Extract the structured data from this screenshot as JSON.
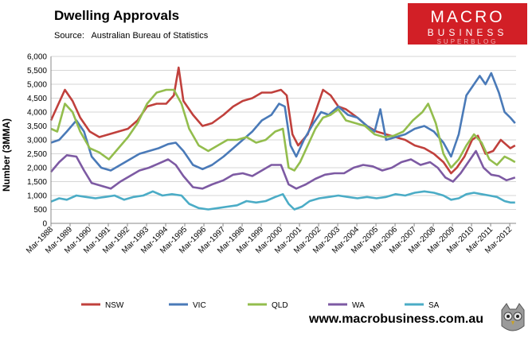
{
  "header": {
    "title": "Dwelling Approvals",
    "source": "Source:   Australian Bureau of Statistics"
  },
  "logo": {
    "main": "MACRO",
    "sub": "BUSINESS",
    "sub2": "SUPERBLOG"
  },
  "footer": {
    "website": "www.macrobusiness.com.au"
  },
  "chart_data": {
    "type": "line",
    "title": "Dwelling Approvals",
    "xlabel": "",
    "ylabel": "Number (3MMA)",
    "ylim": [
      0,
      6000
    ],
    "yticks": [
      "0",
      "500",
      "1,000",
      "1,500",
      "2,000",
      "2,500",
      "3,000",
      "3,500",
      "4,000",
      "4,500",
      "5,000",
      "5,500",
      "6,000"
    ],
    "categories": [
      "Mar-1988",
      "Mar-1989",
      "Mar-1990",
      "Mar-1991",
      "Mar-1992",
      "Mar-1993",
      "Mar-1994",
      "Mar-1995",
      "Mar-1996",
      "Mar-1997",
      "Mar-1998",
      "Mar-1999",
      "Mar-2000",
      "Mar-2001",
      "Mar-2002",
      "Mar-2003",
      "Mar-2004",
      "Mar-2005",
      "Mar-2006",
      "Mar-2007",
      "Mar-2008",
      "Mar-2009",
      "Mar-2010",
      "Mar-2011",
      "Mar-2012"
    ],
    "x_start": 1988.17,
    "x_end": 2012.5,
    "series": [
      {
        "name": "NSW",
        "color": "#c0403c",
        "points": [
          [
            1988.17,
            3700
          ],
          [
            1988.5,
            4200
          ],
          [
            1988.9,
            4800
          ],
          [
            1989.3,
            4400
          ],
          [
            1989.7,
            3800
          ],
          [
            1990.2,
            3300
          ],
          [
            1990.7,
            3100
          ],
          [
            1991.2,
            3200
          ],
          [
            1991.7,
            3300
          ],
          [
            1992.2,
            3400
          ],
          [
            1992.7,
            3700
          ],
          [
            1993.2,
            4200
          ],
          [
            1993.7,
            4300
          ],
          [
            1994.2,
            4300
          ],
          [
            1994.6,
            4600
          ],
          [
            1994.85,
            5600
          ],
          [
            1995.1,
            4400
          ],
          [
            1995.6,
            3900
          ],
          [
            1996.1,
            3500
          ],
          [
            1996.6,
            3600
          ],
          [
            1997.2,
            3900
          ],
          [
            1997.7,
            4200
          ],
          [
            1998.2,
            4400
          ],
          [
            1998.7,
            4500
          ],
          [
            1999.2,
            4700
          ],
          [
            1999.7,
            4700
          ],
          [
            2000.2,
            4800
          ],
          [
            2000.5,
            4600
          ],
          [
            2000.8,
            3200
          ],
          [
            2001.1,
            2800
          ],
          [
            2001.6,
            3200
          ],
          [
            2002.0,
            4000
          ],
          [
            2002.4,
            4800
          ],
          [
            2002.8,
            4600
          ],
          [
            2003.2,
            4200
          ],
          [
            2003.6,
            4100
          ],
          [
            2004.2,
            3800
          ],
          [
            2004.7,
            3500
          ],
          [
            2005.2,
            3300
          ],
          [
            2005.7,
            3200
          ],
          [
            2006.2,
            3100
          ],
          [
            2006.7,
            3000
          ],
          [
            2007.2,
            2800
          ],
          [
            2007.7,
            2700
          ],
          [
            2008.2,
            2500
          ],
          [
            2008.7,
            2200
          ],
          [
            2009.1,
            1800
          ],
          [
            2009.4,
            2000
          ],
          [
            2009.8,
            2400
          ],
          [
            2010.2,
            3000
          ],
          [
            2010.5,
            3150
          ],
          [
            2010.9,
            2500
          ],
          [
            2011.3,
            2600
          ],
          [
            2011.7,
            3000
          ],
          [
            2012.2,
            2700
          ],
          [
            2012.45,
            2800
          ]
        ]
      },
      {
        "name": "VIC",
        "color": "#4a7ab8",
        "points": [
          [
            1988.17,
            2900
          ],
          [
            1988.6,
            3000
          ],
          [
            1989.0,
            3300
          ],
          [
            1989.5,
            3700
          ],
          [
            1989.9,
            3300
          ],
          [
            1990.3,
            2400
          ],
          [
            1990.8,
            2000
          ],
          [
            1991.3,
            1900
          ],
          [
            1991.8,
            2100
          ],
          [
            1992.3,
            2300
          ],
          [
            1992.8,
            2500
          ],
          [
            1993.3,
            2600
          ],
          [
            1993.8,
            2700
          ],
          [
            1994.3,
            2850
          ],
          [
            1994.7,
            2900
          ],
          [
            1995.1,
            2600
          ],
          [
            1995.6,
            2100
          ],
          [
            1996.1,
            1950
          ],
          [
            1996.6,
            2100
          ],
          [
            1997.2,
            2400
          ],
          [
            1997.7,
            2700
          ],
          [
            1998.2,
            3000
          ],
          [
            1998.7,
            3300
          ],
          [
            1999.2,
            3700
          ],
          [
            1999.7,
            3900
          ],
          [
            2000.1,
            4300
          ],
          [
            2000.4,
            4200
          ],
          [
            2000.7,
            2800
          ],
          [
            2001.0,
            2400
          ],
          [
            2001.4,
            3000
          ],
          [
            2001.9,
            3600
          ],
          [
            2002.3,
            4000
          ],
          [
            2002.7,
            3900
          ],
          [
            2003.2,
            4200
          ],
          [
            2003.7,
            3900
          ],
          [
            2004.2,
            3800
          ],
          [
            2004.7,
            3500
          ],
          [
            2005.1,
            3300
          ],
          [
            2005.4,
            4100
          ],
          [
            2005.7,
            3000
          ],
          [
            2006.2,
            3100
          ],
          [
            2006.7,
            3200
          ],
          [
            2007.2,
            3400
          ],
          [
            2007.7,
            3500
          ],
          [
            2008.2,
            3300
          ],
          [
            2008.7,
            2900
          ],
          [
            2009.1,
            2400
          ],
          [
            2009.5,
            3200
          ],
          [
            2009.9,
            4600
          ],
          [
            2010.3,
            5000
          ],
          [
            2010.6,
            5300
          ],
          [
            2010.9,
            5000
          ],
          [
            2011.2,
            5400
          ],
          [
            2011.6,
            4700
          ],
          [
            2011.9,
            4000
          ],
          [
            2012.2,
            3800
          ],
          [
            2012.45,
            3600
          ]
        ]
      },
      {
        "name": "QLD",
        "color": "#93bd4d",
        "points": [
          [
            1988.17,
            3400
          ],
          [
            1988.5,
            3300
          ],
          [
            1988.9,
            4300
          ],
          [
            1989.3,
            4000
          ],
          [
            1989.7,
            3300
          ],
          [
            1990.2,
            2700
          ],
          [
            1990.7,
            2550
          ],
          [
            1991.2,
            2300
          ],
          [
            1991.7,
            2700
          ],
          [
            1992.2,
            3100
          ],
          [
            1992.7,
            3600
          ],
          [
            1993.2,
            4300
          ],
          [
            1993.7,
            4700
          ],
          [
            1994.2,
            4800
          ],
          [
            1994.6,
            4800
          ],
          [
            1995.0,
            4300
          ],
          [
            1995.4,
            3400
          ],
          [
            1995.9,
            2800
          ],
          [
            1996.4,
            2600
          ],
          [
            1996.9,
            2800
          ],
          [
            1997.4,
            3000
          ],
          [
            1997.9,
            3000
          ],
          [
            1998.4,
            3100
          ],
          [
            1998.9,
            2900
          ],
          [
            1999.4,
            3000
          ],
          [
            1999.9,
            3300
          ],
          [
            2000.3,
            3400
          ],
          [
            2000.6,
            2000
          ],
          [
            2000.9,
            1900
          ],
          [
            2001.2,
            2200
          ],
          [
            2001.6,
            2800
          ],
          [
            2002.0,
            3400
          ],
          [
            2002.4,
            3800
          ],
          [
            2002.8,
            3900
          ],
          [
            2003.2,
            4100
          ],
          [
            2003.6,
            3700
          ],
          [
            2004.1,
            3600
          ],
          [
            2004.6,
            3500
          ],
          [
            2005.1,
            3200
          ],
          [
            2005.6,
            3100
          ],
          [
            2006.1,
            3150
          ],
          [
            2006.6,
            3300
          ],
          [
            2007.1,
            3700
          ],
          [
            2007.6,
            4000
          ],
          [
            2007.9,
            4300
          ],
          [
            2008.3,
            3600
          ],
          [
            2008.7,
            2500
          ],
          [
            2009.1,
            2000
          ],
          [
            2009.5,
            2300
          ],
          [
            2009.9,
            2800
          ],
          [
            2010.3,
            3200
          ],
          [
            2010.7,
            2900
          ],
          [
            2011.1,
            2300
          ],
          [
            2011.5,
            2100
          ],
          [
            2011.9,
            2400
          ],
          [
            2012.2,
            2300
          ],
          [
            2012.45,
            2200
          ]
        ]
      },
      {
        "name": "WA",
        "color": "#7d5aa3",
        "points": [
          [
            1988.17,
            1850
          ],
          [
            1988.6,
            2200
          ],
          [
            1989.0,
            2450
          ],
          [
            1989.5,
            2400
          ],
          [
            1989.9,
            1900
          ],
          [
            1990.3,
            1450
          ],
          [
            1990.8,
            1350
          ],
          [
            1991.3,
            1250
          ],
          [
            1991.8,
            1500
          ],
          [
            1992.3,
            1700
          ],
          [
            1992.8,
            1900
          ],
          [
            1993.3,
            2000
          ],
          [
            1993.8,
            2150
          ],
          [
            1994.3,
            2300
          ],
          [
            1994.7,
            2100
          ],
          [
            1995.1,
            1700
          ],
          [
            1995.6,
            1300
          ],
          [
            1996.1,
            1250
          ],
          [
            1996.6,
            1400
          ],
          [
            1997.2,
            1550
          ],
          [
            1997.7,
            1750
          ],
          [
            1998.2,
            1800
          ],
          [
            1998.7,
            1700
          ],
          [
            1999.2,
            1900
          ],
          [
            1999.7,
            2100
          ],
          [
            2000.2,
            2100
          ],
          [
            2000.6,
            1400
          ],
          [
            2001.0,
            1250
          ],
          [
            2001.5,
            1400
          ],
          [
            2002.0,
            1600
          ],
          [
            2002.5,
            1750
          ],
          [
            2003.0,
            1800
          ],
          [
            2003.5,
            1800
          ],
          [
            2004.0,
            2000
          ],
          [
            2004.5,
            2100
          ],
          [
            2005.0,
            2050
          ],
          [
            2005.5,
            1900
          ],
          [
            2006.0,
            2000
          ],
          [
            2006.5,
            2200
          ],
          [
            2007.0,
            2300
          ],
          [
            2007.5,
            2100
          ],
          [
            2008.0,
            2200
          ],
          [
            2008.4,
            2000
          ],
          [
            2008.8,
            1650
          ],
          [
            2009.2,
            1500
          ],
          [
            2009.6,
            1800
          ],
          [
            2010.1,
            2300
          ],
          [
            2010.4,
            2600
          ],
          [
            2010.8,
            2000
          ],
          [
            2011.2,
            1750
          ],
          [
            2011.6,
            1700
          ],
          [
            2012.0,
            1550
          ],
          [
            2012.45,
            1650
          ]
        ]
      },
      {
        "name": "SA",
        "color": "#4bacc6",
        "points": [
          [
            1988.17,
            780
          ],
          [
            1988.6,
            900
          ],
          [
            1989.0,
            850
          ],
          [
            1989.5,
            1000
          ],
          [
            1990.0,
            950
          ],
          [
            1990.5,
            900
          ],
          [
            1991.0,
            950
          ],
          [
            1991.5,
            1000
          ],
          [
            1992.0,
            850
          ],
          [
            1992.5,
            950
          ],
          [
            1993.0,
            1000
          ],
          [
            1993.5,
            1150
          ],
          [
            1994.0,
            1000
          ],
          [
            1994.5,
            1050
          ],
          [
            1995.0,
            1000
          ],
          [
            1995.4,
            700
          ],
          [
            1995.9,
            550
          ],
          [
            1996.4,
            500
          ],
          [
            1996.9,
            550
          ],
          [
            1997.4,
            600
          ],
          [
            1997.9,
            650
          ],
          [
            1998.4,
            800
          ],
          [
            1998.9,
            750
          ],
          [
            1999.4,
            800
          ],
          [
            1999.9,
            950
          ],
          [
            2000.3,
            1050
          ],
          [
            2000.6,
            700
          ],
          [
            2000.9,
            500
          ],
          [
            2001.3,
            600
          ],
          [
            2001.7,
            800
          ],
          [
            2002.2,
            900
          ],
          [
            2002.7,
            950
          ],
          [
            2003.2,
            1000
          ],
          [
            2003.7,
            950
          ],
          [
            2004.2,
            900
          ],
          [
            2004.7,
            950
          ],
          [
            2005.2,
            900
          ],
          [
            2005.7,
            950
          ],
          [
            2006.2,
            1050
          ],
          [
            2006.7,
            1000
          ],
          [
            2007.2,
            1100
          ],
          [
            2007.7,
            1150
          ],
          [
            2008.2,
            1100
          ],
          [
            2008.7,
            1000
          ],
          [
            2009.1,
            850
          ],
          [
            2009.5,
            900
          ],
          [
            2009.9,
            1050
          ],
          [
            2010.3,
            1100
          ],
          [
            2010.7,
            1050
          ],
          [
            2011.1,
            1000
          ],
          [
            2011.5,
            950
          ],
          [
            2011.9,
            800
          ],
          [
            2012.2,
            750
          ],
          [
            2012.45,
            750
          ]
        ]
      }
    ]
  }
}
